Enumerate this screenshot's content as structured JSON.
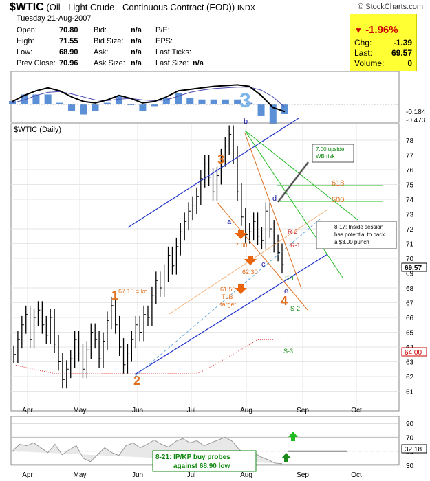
{
  "header": {
    "symbol": "$WTIC",
    "name": "(Oil - Light Crude - Continuous Contract (EOD))",
    "exchange": "INDX",
    "brand": "© StockCharts.com",
    "date": "Tuesday  21-Aug-2007"
  },
  "info": {
    "open_label": "Open:",
    "open": "70.80",
    "high_label": "High:",
    "high": "71.55",
    "low_label": "Low:",
    "low": "68.90",
    "prevclose_label": "Prev Close:",
    "prevclose": "70.96",
    "bid_label": "Bid:",
    "bid": "n/a",
    "bidsize_label": "Bid Size:",
    "bidsize": "n/a",
    "ask_label": "Ask:",
    "ask": "n/a",
    "asksize_label": "Ask Size:",
    "asksize": "n/a",
    "pe_label": "P/E:",
    "eps_label": "EPS:",
    "lastticks_label": "Last Ticks:",
    "lastsize_label": "Last Size:",
    "lastsize": "n/a"
  },
  "quote": {
    "pct": "-1.96%",
    "chg_label": "Chg:",
    "chg": "-1.39",
    "last_label": "Last:",
    "last": "69.57",
    "volume_label": "Volume:",
    "volume": "0",
    "bg_color": "#ffff33",
    "down_color": "#cc0000"
  },
  "chart_data": [
    {
      "type": "line",
      "panel": "macd",
      "annotation": "3",
      "value_labels": [
        "-0.184",
        "-0.473"
      ],
      "series": [
        {
          "values": [
            0.2,
            0.6,
            0.9,
            1.1,
            0.9,
            0.5,
            0.2,
            0.1,
            0.3,
            0.6,
            0.4,
            0.1,
            0.2,
            0.5,
            0.9,
            1.0,
            1.1,
            1.2,
            1.25,
            1.3,
            1.2,
            0.6,
            -0.2,
            -0.473
          ]
        },
        {
          "values": [
            0.1,
            0.3,
            0.6,
            0.8,
            0.85,
            0.7,
            0.5,
            0.3,
            0.25,
            0.35,
            0.4,
            0.3,
            0.25,
            0.3,
            0.55,
            0.8,
            0.95,
            1.05,
            1.1,
            1.15,
            1.15,
            0.95,
            0.5,
            -0.184
          ]
        }
      ]
    },
    {
      "type": "line",
      "panel": "price",
      "title": "$WTIC (Daily)",
      "x_labels": [
        "Apr",
        "May",
        "Jun",
        "Jul",
        "Aug",
        "Sep",
        "Oct"
      ],
      "y_ticks": [
        61,
        62,
        63,
        64,
        65,
        66,
        67,
        68,
        69,
        70,
        71,
        72,
        73,
        74,
        75,
        76,
        77,
        78
      ],
      "ylim": [
        60.5,
        79
      ],
      "last_label": "69.57",
      "ma_label": "64.00",
      "series": [
        {
          "values": [
            63.5,
            64.5,
            65.5,
            66.2,
            64.5,
            66,
            66.5,
            65.5,
            64.8,
            66,
            64.2,
            63,
            61.8,
            62.5,
            63.2,
            64.5,
            63.6,
            62.5,
            63.8,
            65,
            64.5,
            63.2,
            64.4,
            65.8,
            66.8,
            65.5,
            64,
            62.8,
            63.6,
            64.5,
            65.5,
            65,
            66.2,
            66,
            67.5,
            68.5,
            68,
            69,
            70.2,
            69.5,
            70.8,
            71.8,
            72.5,
            73.2,
            73.6,
            74.2,
            75.4,
            76.4,
            75.5,
            74.5,
            75.6,
            76.8,
            77.6,
            78.4,
            77,
            74.5,
            72.8,
            71.6,
            71.8,
            72.5,
            71.5,
            71.2,
            73.2,
            72,
            71,
            70.4,
            69.57
          ]
        }
      ],
      "annotations": [
        {
          "text": "1",
          "color": "#e07020"
        },
        {
          "text": "2",
          "color": "#e07020"
        },
        {
          "text": "3",
          "color": "#e07020"
        },
        {
          "text": "4",
          "color": "#e07020"
        },
        {
          "text": "a",
          "color": "#1a1aa0"
        },
        {
          "text": "b",
          "color": "#1a1aa0"
        },
        {
          "text": "c",
          "color": "#1a1aa0"
        },
        {
          "text": "d",
          "color": "#1a1aa0"
        },
        {
          "text": "e",
          "color": "#1a1aa0"
        },
        {
          "text": "67.10 = ko",
          "color": "#e07020"
        },
        {
          "text": "7.00",
          "color": "#e07020"
        },
        {
          "text": "62.30",
          "color": "#e07020"
        },
        {
          "text": "61.50",
          "color": "#e07020"
        },
        {
          "text": "TLB",
          "color": "#e07020"
        },
        {
          "text": "target",
          "color": "#e07020"
        },
        {
          "text": "618",
          "color": "#e07020"
        },
        {
          "text": "500",
          "color": "#e07020"
        },
        {
          "text": "R-2",
          "color": "#cc2222"
        },
        {
          "text": "R-1",
          "color": "#cc2222"
        },
        {
          "text": "S-1",
          "color": "#118811"
        },
        {
          "text": "S-2",
          "color": "#118811"
        },
        {
          "text": "S-3",
          "color": "#118811"
        }
      ],
      "callouts": [
        {
          "lines": [
            "7.00 upside",
            "WB risk"
          ]
        },
        {
          "lines": [
            "8-17:  Inside session",
            "has potential to pack",
            "a $3.00 punch"
          ]
        }
      ]
    },
    {
      "type": "line",
      "panel": "rsi",
      "x_labels": [
        "Apr",
        "May",
        "Jun",
        "Jul",
        "Aug",
        "Sep",
        "Oct"
      ],
      "y_ticks": [
        90,
        70,
        50,
        30
      ],
      "ylim": [
        20,
        95
      ],
      "last_label": "32.18",
      "callout": [
        "8-21: IP/KP buy probes",
        "against 68.90 low"
      ],
      "series": [
        {
          "values": [
            50,
            60,
            58,
            62,
            55,
            48,
            60,
            45,
            52,
            58,
            40,
            35,
            45,
            55,
            48,
            44,
            58,
            62,
            55,
            60,
            66,
            60,
            56,
            64,
            68,
            62,
            65,
            58,
            62,
            66,
            70,
            64,
            52,
            45,
            48,
            42,
            38,
            33,
            32.18
          ]
        }
      ]
    }
  ]
}
